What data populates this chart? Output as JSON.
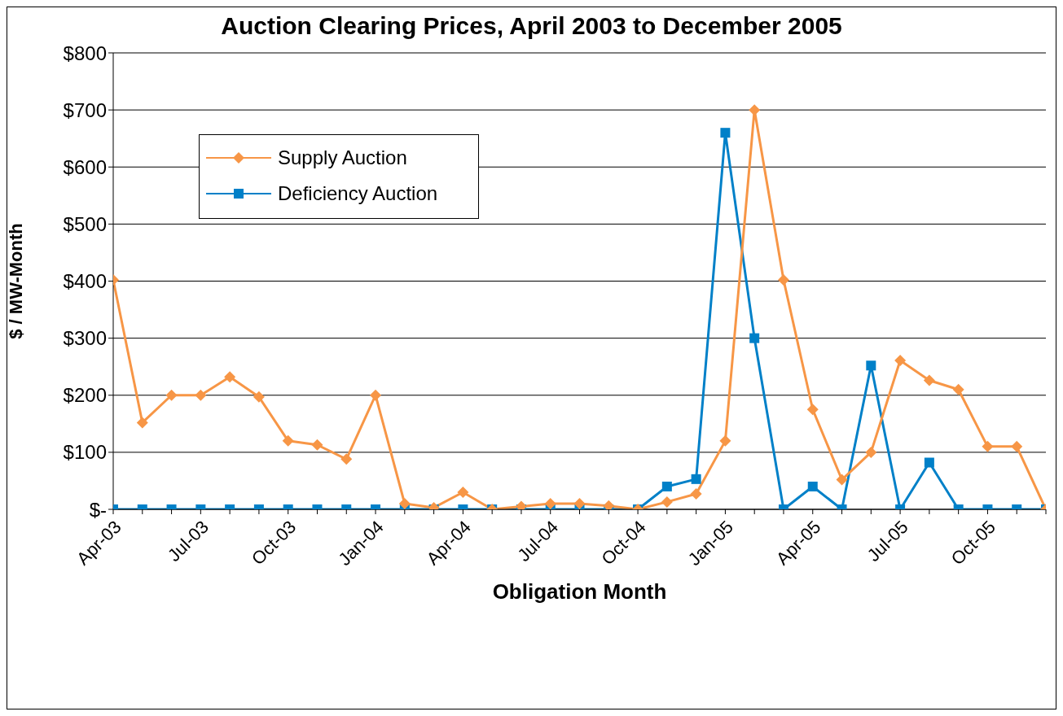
{
  "chart_data": {
    "type": "line",
    "title": "Auction Clearing Prices, April 2003 to December 2005",
    "xlabel": "Obligation Month",
    "ylabel": "$ / MW-Month",
    "categories": [
      "Apr-03",
      null,
      null,
      "Jul-03",
      null,
      null,
      "Oct-03",
      null,
      null,
      "Jan-04",
      null,
      null,
      "Apr-04",
      null,
      null,
      "Jul-04",
      null,
      null,
      "Oct-04",
      null,
      null,
      "Jan-05",
      null,
      null,
      "Apr-05",
      null,
      null,
      "Jul-05",
      null,
      null,
      "Oct-05",
      null,
      null
    ],
    "series": [
      {
        "name": "Supply Auction",
        "color": "#f79646",
        "marker": "diamond",
        "values": [
          402,
          152,
          200,
          200,
          232,
          197,
          120,
          113,
          88,
          200,
          10,
          3,
          30,
          0,
          5,
          10,
          10,
          6,
          0,
          13,
          27,
          120,
          700,
          402,
          175,
          52,
          100,
          261,
          226,
          210,
          110,
          110,
          0
        ]
      },
      {
        "name": "Deficiency Auction",
        "color": "#0080c8",
        "marker": "square",
        "values": [
          0,
          0,
          0,
          0,
          0,
          0,
          0,
          0,
          0,
          0,
          0,
          0,
          0,
          0,
          0,
          0,
          0,
          0,
          0,
          40,
          53,
          660,
          300,
          0,
          40,
          0,
          252,
          0,
          82,
          0,
          0,
          0,
          0
        ]
      }
    ],
    "ylim": [
      0,
      800
    ],
    "yticks": [
      {
        "value": 0,
        "label": "$-"
      },
      {
        "value": 100,
        "label": "$100"
      },
      {
        "value": 200,
        "label": "$200"
      },
      {
        "value": 300,
        "label": "$300"
      },
      {
        "value": 400,
        "label": "$400"
      },
      {
        "value": 500,
        "label": "$500"
      },
      {
        "value": 600,
        "label": "$600"
      },
      {
        "value": 700,
        "label": "$700"
      },
      {
        "value": 800,
        "label": "$800"
      }
    ],
    "grid": "y",
    "legend": "top left",
    "line_style": "solid"
  }
}
